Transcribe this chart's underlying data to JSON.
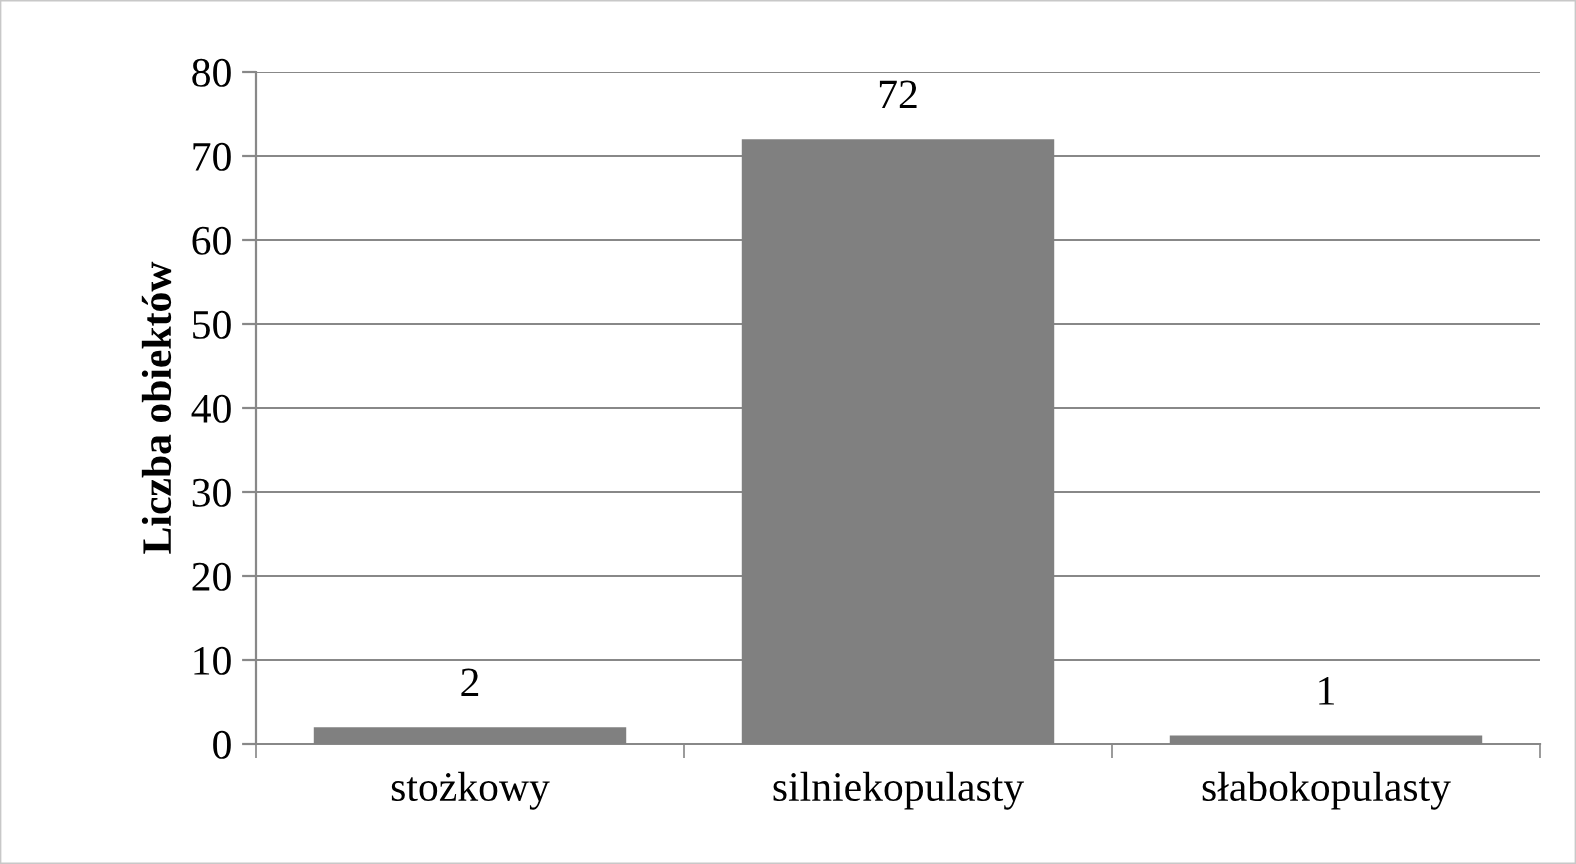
{
  "chart_data": {
    "type": "bar",
    "ylabel": "Liczba obiektów",
    "categories": [
      "stożkowy",
      "silniekopulasty",
      "słabokopulasty"
    ],
    "values": [
      2,
      72,
      1
    ],
    "color": "#808080",
    "ylim": [
      0,
      80
    ],
    "yticks": [
      0,
      10,
      20,
      30,
      40,
      50,
      60,
      70,
      80
    ],
    "grid": "y",
    "data_labels": true
  }
}
